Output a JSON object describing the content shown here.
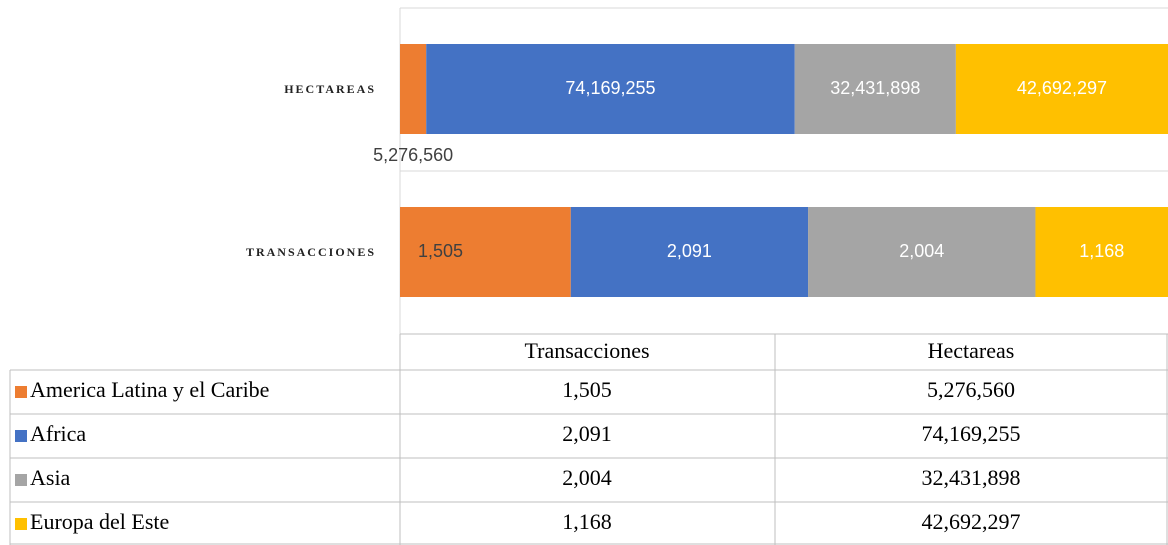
{
  "chart_data": {
    "type": "stacked_bar_100",
    "categories": [
      "Transacciones",
      "Hectareas"
    ],
    "series": [
      {
        "name": "America Latina y el Caribe",
        "color": "#ED7D31",
        "values": [
          1505,
          5276560
        ],
        "value_labels": [
          "1,505",
          "5,276,560"
        ]
      },
      {
        "name": "Africa",
        "color": "#4472C4",
        "values": [
          2091,
          74169255
        ],
        "value_labels": [
          "2,091",
          "74,169,255"
        ]
      },
      {
        "name": "Asia",
        "color": "#A5A5A5",
        "values": [
          2004,
          32431898
        ],
        "value_labels": [
          "2,004",
          "32,431,898"
        ]
      },
      {
        "name": "Europa del Este",
        "color": "#FFC000",
        "values": [
          1168,
          42692297
        ],
        "value_labels": [
          "1,168",
          "42,692,297"
        ]
      }
    ]
  }
}
